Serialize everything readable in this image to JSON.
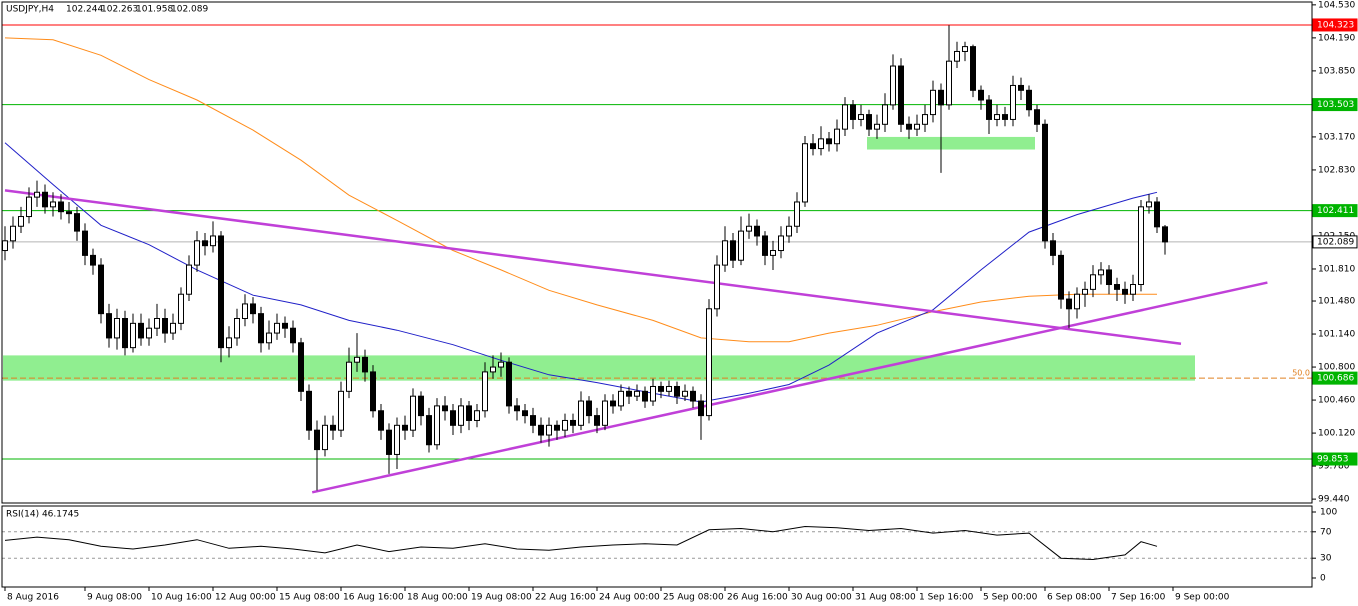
{
  "chart_data": {
    "type": "candlestick",
    "symbol": "USDJPY,H4",
    "up_color": "#ffffff",
    "down_color": "#000000",
    "xlim": [
      -0.625,
      163.375
    ],
    "ylim": [
      99.4,
      104.58
    ],
    "xticks": [
      {
        "value": 0,
        "label": "8 Aug 2016"
      },
      {
        "value": 10,
        "label": "9 Aug 08:00"
      },
      {
        "value": 18,
        "label": "10 Aug 16:00"
      },
      {
        "value": 26,
        "label": "12 Aug 00:00"
      },
      {
        "value": 34,
        "label": "15 Aug 08:00"
      },
      {
        "value": 42,
        "label": "16 Aug 16:00"
      },
      {
        "value": 50,
        "label": "18 Aug 00:00"
      },
      {
        "value": 58,
        "label": "19 Aug 08:00"
      },
      {
        "value": 66,
        "label": "22 Aug 16:00"
      },
      {
        "value": 74,
        "label": "24 Aug 00:00"
      },
      {
        "value": 82,
        "label": "25 Aug 08:00"
      },
      {
        "value": 90,
        "label": "26 Aug 16:00"
      },
      {
        "value": 98,
        "label": "30 Aug 00:00"
      },
      {
        "value": 106,
        "label": "31 Aug 08:00"
      },
      {
        "value": 114,
        "label": "1 Sep 16:00"
      },
      {
        "value": 122,
        "label": "5 Sep 00:00"
      },
      {
        "value": 130,
        "label": "6 Sep 08:00"
      },
      {
        "value": 138,
        "label": "7 Sep 16:00"
      },
      {
        "value": 146,
        "label": "9 Sep 00:00"
      }
    ],
    "yticks": [
      {
        "value": 104.53,
        "label": "104.530"
      },
      {
        "value": 104.19,
        "label": "104.190"
      },
      {
        "value": 103.85,
        "label": "103.850"
      },
      {
        "value": 103.17,
        "label": "103.170"
      },
      {
        "value": 102.83,
        "label": "102.830"
      },
      {
        "value": 102.15,
        "label": "102.150"
      },
      {
        "value": 101.81,
        "label": "101.810"
      },
      {
        "value": 101.48,
        "label": "101.480"
      },
      {
        "value": 101.14,
        "label": "101.140"
      },
      {
        "value": 100.8,
        "label": "100.800"
      },
      {
        "value": 100.46,
        "label": "100.460"
      },
      {
        "value": 100.12,
        "label": "100.120"
      },
      {
        "value": 99.78,
        "label": "99.780"
      },
      {
        "value": 99.44,
        "label": "99.440"
      }
    ],
    "candles": [
      [
        102.0,
        102.25,
        101.9,
        102.1
      ],
      [
        102.1,
        102.35,
        102.02,
        102.25
      ],
      [
        102.25,
        102.45,
        102.18,
        102.35
      ],
      [
        102.35,
        102.65,
        102.28,
        102.55
      ],
      [
        102.55,
        102.72,
        102.45,
        102.6
      ],
      [
        102.6,
        102.68,
        102.38,
        102.45
      ],
      [
        102.45,
        102.6,
        102.35,
        102.5
      ],
      [
        102.5,
        102.58,
        102.32,
        102.4
      ],
      [
        102.4,
        102.5,
        102.28,
        102.38
      ],
      [
        102.38,
        102.45,
        102.1,
        102.2
      ],
      [
        102.2,
        102.28,
        101.85,
        101.95
      ],
      [
        101.95,
        102.02,
        101.75,
        101.85
      ],
      [
        101.85,
        101.92,
        101.25,
        101.35
      ],
      [
        101.35,
        101.45,
        101.0,
        101.1
      ],
      [
        101.1,
        101.4,
        100.98,
        101.3
      ],
      [
        101.3,
        101.38,
        100.92,
        101.0
      ],
      [
        101.0,
        101.35,
        100.95,
        101.25
      ],
      [
        101.25,
        101.35,
        101.02,
        101.1
      ],
      [
        101.1,
        101.3,
        101.02,
        101.2
      ],
      [
        101.2,
        101.45,
        101.12,
        101.3
      ],
      [
        101.3,
        101.4,
        101.05,
        101.15
      ],
      [
        101.15,
        101.35,
        101.08,
        101.25
      ],
      [
        101.25,
        101.62,
        101.18,
        101.55
      ],
      [
        101.55,
        101.95,
        101.48,
        101.85
      ],
      [
        101.85,
        102.2,
        101.78,
        102.1
      ],
      [
        102.1,
        102.18,
        101.95,
        102.05
      ],
      [
        102.05,
        102.3,
        101.98,
        102.15
      ],
      [
        102.15,
        102.2,
        100.85,
        101.0
      ],
      [
        101.0,
        101.22,
        100.9,
        101.1
      ],
      [
        101.1,
        101.4,
        101.02,
        101.3
      ],
      [
        101.3,
        101.55,
        101.22,
        101.45
      ],
      [
        101.45,
        101.52,
        101.25,
        101.35
      ],
      [
        101.35,
        101.42,
        100.95,
        101.05
      ],
      [
        101.05,
        101.28,
        100.98,
        101.15
      ],
      [
        101.15,
        101.35,
        101.08,
        101.25
      ],
      [
        101.25,
        101.32,
        101.1,
        101.2
      ],
      [
        101.2,
        101.28,
        100.95,
        101.05
      ],
      [
        101.05,
        101.1,
        100.45,
        100.55
      ],
      [
        100.55,
        100.62,
        100.05,
        100.15
      ],
      [
        100.15,
        100.25,
        99.53,
        99.95
      ],
      [
        99.95,
        100.3,
        99.88,
        100.2
      ],
      [
        100.2,
        100.3,
        100.05,
        100.15
      ],
      [
        100.15,
        100.65,
        100.08,
        100.55
      ],
      [
        100.55,
        101.0,
        100.48,
        100.85
      ],
      [
        100.85,
        101.15,
        100.75,
        100.9
      ],
      [
        100.9,
        100.98,
        100.65,
        100.75
      ],
      [
        100.75,
        100.82,
        100.28,
        100.35
      ],
      [
        100.35,
        100.42,
        100.05,
        100.15
      ],
      [
        100.15,
        100.22,
        99.7,
        99.9
      ],
      [
        99.9,
        100.28,
        99.75,
        100.2
      ],
      [
        100.2,
        100.3,
        100.05,
        100.15
      ],
      [
        100.15,
        100.58,
        100.08,
        100.5
      ],
      [
        100.5,
        100.55,
        100.2,
        100.3
      ],
      [
        100.3,
        100.38,
        99.92,
        100.0
      ],
      [
        100.0,
        100.48,
        99.95,
        100.4
      ],
      [
        100.4,
        100.5,
        100.25,
        100.35
      ],
      [
        100.35,
        100.42,
        100.1,
        100.2
      ],
      [
        100.2,
        100.48,
        100.12,
        100.4
      ],
      [
        100.4,
        100.45,
        100.15,
        100.25
      ],
      [
        100.25,
        100.42,
        100.18,
        100.35
      ],
      [
        100.35,
        100.85,
        100.28,
        100.75
      ],
      [
        100.75,
        100.92,
        100.68,
        100.8
      ],
      [
        100.8,
        100.95,
        100.7,
        100.85
      ],
      [
        100.85,
        100.9,
        100.32,
        100.4
      ],
      [
        100.4,
        100.48,
        100.25,
        100.35
      ],
      [
        100.35,
        100.42,
        100.22,
        100.3
      ],
      [
        100.3,
        100.38,
        100.12,
        100.2
      ],
      [
        100.2,
        100.28,
        100.02,
        100.1
      ],
      [
        100.1,
        100.28,
        99.98,
        100.2
      ],
      [
        100.2,
        100.25,
        100.05,
        100.15
      ],
      [
        100.15,
        100.32,
        100.08,
        100.25
      ],
      [
        100.25,
        100.32,
        100.12,
        100.2
      ],
      [
        100.2,
        100.55,
        100.15,
        100.45
      ],
      [
        100.45,
        100.5,
        100.22,
        100.3
      ],
      [
        100.3,
        100.38,
        100.12,
        100.2
      ],
      [
        100.2,
        100.52,
        100.15,
        100.45
      ],
      [
        100.45,
        100.52,
        100.32,
        100.4
      ],
      [
        100.4,
        100.62,
        100.35,
        100.55
      ],
      [
        100.55,
        100.6,
        100.42,
        100.5
      ],
      [
        100.5,
        100.62,
        100.45,
        100.55
      ],
      [
        100.55,
        100.6,
        100.38,
        100.45
      ],
      [
        100.45,
        100.68,
        100.4,
        100.6
      ],
      [
        100.6,
        100.65,
        100.48,
        100.55
      ],
      [
        100.55,
        100.66,
        100.5,
        100.6
      ],
      [
        100.6,
        100.65,
        100.42,
        100.5
      ],
      [
        100.5,
        100.62,
        100.45,
        100.55
      ],
      [
        100.55,
        100.6,
        100.38,
        100.45
      ],
      [
        100.45,
        100.52,
        100.05,
        100.3
      ],
      [
        100.3,
        101.5,
        100.25,
        101.4
      ],
      [
        101.4,
        101.95,
        101.32,
        101.85
      ],
      [
        101.85,
        102.25,
        101.78,
        102.1
      ],
      [
        102.1,
        102.18,
        101.82,
        101.9
      ],
      [
        101.9,
        102.35,
        101.85,
        102.2
      ],
      [
        102.2,
        102.38,
        102.12,
        102.25
      ],
      [
        102.25,
        102.32,
        102.05,
        102.15
      ],
      [
        102.15,
        102.2,
        101.85,
        101.95
      ],
      [
        101.95,
        102.1,
        101.8,
        102.0
      ],
      [
        102.0,
        102.25,
        101.92,
        102.15
      ],
      [
        102.15,
        102.35,
        102.08,
        102.25
      ],
      [
        102.25,
        102.6,
        102.18,
        102.5
      ],
      [
        102.5,
        103.18,
        102.45,
        103.1
      ],
      [
        103.1,
        103.2,
        102.98,
        103.05
      ],
      [
        103.05,
        103.28,
        102.98,
        103.15
      ],
      [
        103.15,
        103.22,
        103.02,
        103.1
      ],
      [
        103.1,
        103.35,
        103.02,
        103.25
      ],
      [
        103.25,
        103.58,
        103.18,
        103.5
      ],
      [
        103.5,
        103.55,
        103.25,
        103.35
      ],
      [
        103.35,
        103.5,
        103.28,
        103.4
      ],
      [
        103.4,
        103.45,
        103.18,
        103.25
      ],
      [
        103.25,
        103.4,
        103.15,
        103.3
      ],
      [
        103.3,
        103.62,
        103.22,
        103.5
      ],
      [
        103.5,
        104.02,
        103.45,
        103.9
      ],
      [
        103.9,
        103.98,
        103.22,
        103.3
      ],
      [
        103.3,
        103.38,
        103.15,
        103.25
      ],
      [
        103.25,
        103.4,
        103.18,
        103.3
      ],
      [
        103.3,
        103.5,
        103.22,
        103.4
      ],
      [
        103.4,
        103.75,
        103.32,
        103.65
      ],
      [
        103.65,
        103.72,
        102.8,
        103.5
      ],
      [
        103.5,
        104.32,
        103.45,
        103.95
      ],
      [
        103.95,
        104.15,
        103.88,
        104.05
      ],
      [
        104.05,
        104.15,
        103.95,
        104.1
      ],
      [
        104.1,
        104.12,
        103.58,
        103.65
      ],
      [
        103.65,
        103.7,
        103.45,
        103.55
      ],
      [
        103.55,
        103.6,
        103.2,
        103.35
      ],
      [
        103.35,
        103.5,
        103.28,
        103.4
      ],
      [
        103.4,
        103.48,
        103.28,
        103.35
      ],
      [
        103.35,
        103.8,
        103.28,
        103.7
      ],
      [
        103.7,
        103.78,
        103.55,
        103.65
      ],
      [
        103.65,
        103.7,
        103.38,
        103.45
      ],
      [
        103.45,
        103.5,
        103.22,
        103.3
      ],
      [
        103.3,
        103.35,
        102.02,
        102.1
      ],
      [
        102.1,
        102.18,
        101.85,
        101.95
      ],
      [
        101.95,
        102.0,
        101.4,
        101.5
      ],
      [
        101.5,
        101.58,
        101.2,
        101.4
      ],
      [
        101.4,
        101.62,
        101.3,
        101.55
      ],
      [
        101.55,
        101.68,
        101.42,
        101.6
      ],
      [
        101.6,
        101.85,
        101.52,
        101.75
      ],
      [
        101.75,
        101.88,
        101.65,
        101.8
      ],
      [
        101.8,
        101.85,
        101.55,
        101.65
      ],
      [
        101.65,
        101.72,
        101.48,
        101.6
      ],
      [
        101.6,
        101.68,
        101.45,
        101.55
      ],
      [
        101.55,
        101.75,
        101.48,
        101.65
      ],
      [
        101.65,
        102.52,
        101.58,
        102.45
      ],
      [
        102.45,
        102.58,
        102.38,
        102.5
      ],
      [
        102.5,
        102.55,
        102.18,
        102.244
      ],
      [
        102.244,
        102.263,
        101.958,
        102.089
      ]
    ],
    "moving_averages": [
      {
        "color": "#ff8c1a",
        "x": [
          0,
          6,
          12,
          18,
          24,
          31,
          37,
          43,
          49,
          56,
          62,
          68,
          74,
          81,
          87,
          93,
          98,
          103,
          109,
          116,
          122,
          128,
          134,
          141,
          144
        ],
        "values": [
          104.19,
          104.17,
          104.01,
          103.76,
          103.55,
          103.24,
          102.93,
          102.57,
          102.31,
          102.0,
          101.8,
          101.59,
          101.44,
          101.28,
          101.1,
          101.06,
          101.06,
          101.15,
          101.23,
          101.37,
          101.47,
          101.53,
          101.55,
          101.55,
          101.55
        ]
      },
      {
        "color": "#2020c8",
        "x": [
          0,
          6,
          12,
          18,
          24,
          31,
          37,
          43,
          49,
          56,
          62,
          68,
          74,
          81,
          87,
          93,
          98,
          103,
          109,
          116,
          122,
          128,
          134,
          141,
          144
        ],
        "values": [
          103.11,
          102.68,
          102.26,
          102.06,
          101.8,
          101.54,
          101.44,
          101.28,
          101.18,
          101.03,
          100.87,
          100.72,
          100.64,
          100.53,
          100.44,
          100.53,
          100.62,
          100.82,
          101.15,
          101.39,
          101.8,
          102.19,
          102.37,
          102.54,
          102.6
        ]
      }
    ],
    "trendlines": [
      {
        "color": "#c040d8",
        "x": [
          0,
          147
        ],
        "values": [
          102.62,
          101.04
        ]
      },
      {
        "color": "#c040d8",
        "x": [
          38.4,
          157.8
        ],
        "values": [
          99.51,
          101.67
        ]
      }
    ],
    "zones": [
      {
        "color": "#90ee90",
        "x": [
          -0.25,
          148.75
        ],
        "values": [
          100.92,
          100.66
        ]
      },
      {
        "color": "#90ee90",
        "x": [
          107.75,
          128.75
        ],
        "values": [
          103.17,
          103.04
        ]
      }
    ],
    "levels": [
      {
        "value": 104.323,
        "color": "#ff0000",
        "box": "#ff0000",
        "text_color": "#ffffff",
        "dash": false
      },
      {
        "value": 103.503,
        "color": "#00b400",
        "box": "#00b400",
        "text_color": "#ffffff",
        "dash": false
      },
      {
        "value": 102.411,
        "color": "#00b400",
        "box": "#00b400",
        "text_color": "#ffffff",
        "dash": false
      },
      {
        "value": 102.089,
        "color": "#b4b4b4",
        "box": "#ffffff",
        "text_color": "#000000",
        "dash": false
      },
      {
        "value": 100.686,
        "color": "#e08020",
        "box": "#00b400",
        "text_color": "#ffffff",
        "dash": true,
        "note": "50.0"
      },
      {
        "value": 99.853,
        "color": "#00b400",
        "box": "#00b400",
        "text_color": "#ffffff",
        "dash": false
      }
    ],
    "rsi": {
      "label": "RSI(14) 46.1745",
      "color": "#000000",
      "ylim": [
        0,
        100
      ],
      "yticks": [
        100,
        70,
        30,
        0
      ],
      "levels": [
        70,
        30
      ],
      "x": [
        0,
        4,
        8,
        12,
        16,
        20,
        24,
        28,
        32,
        36,
        40,
        44,
        48,
        52,
        56,
        60,
        64,
        68,
        72,
        76,
        80,
        84,
        88,
        92,
        96,
        100,
        104,
        108,
        112,
        116,
        120,
        124,
        128,
        132,
        136,
        140,
        142,
        144
      ],
      "values": [
        57,
        62,
        58,
        48,
        44,
        50,
        58,
        45,
        48,
        44,
        38,
        50,
        40,
        47,
        45,
        52,
        44,
        42,
        47,
        50,
        52,
        50,
        73,
        75,
        70,
        78,
        76,
        72,
        75,
        68,
        72,
        65,
        68,
        30,
        28,
        35,
        55,
        48
      ]
    }
  }
}
